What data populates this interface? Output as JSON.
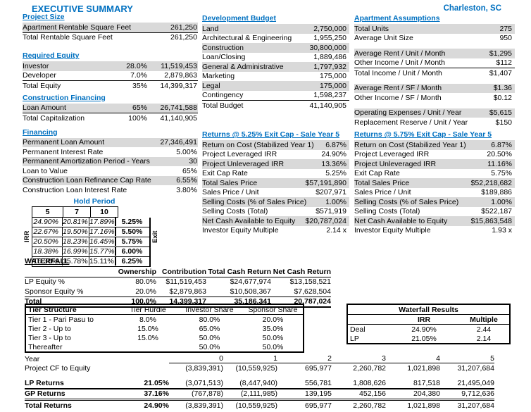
{
  "colors": {
    "accent_blue": "#0070C0",
    "row_band": "#D9D9D9"
  },
  "header": {
    "title": "EXECUTIVE SUMMARY",
    "location": "Charleston, SC"
  },
  "left": {
    "project_size": {
      "title": "Project Size",
      "rows": [
        {
          "label": "Apartment Rentable Square Feet",
          "value": "261,250",
          "cls": "shade bb"
        },
        {
          "label": "Total Rentable Square Feet",
          "value": "261,250",
          "cls": ""
        }
      ]
    },
    "required_equity": {
      "title": "Required Equity",
      "rows": [
        {
          "label": "Investor",
          "pct": "28.0%",
          "value": "11,519,453",
          "cls": "shade"
        },
        {
          "label": "Developer",
          "pct": "7.0%",
          "value": "2,879,863",
          "cls": "bb"
        },
        {
          "label": "Total Equity",
          "pct": "35%",
          "value": "14,399,317",
          "cls": ""
        }
      ]
    },
    "construction_financing": {
      "title": "Construction Financing",
      "rows": [
        {
          "label": "Loan Amount",
          "pct": "65%",
          "value": "26,741,588",
          "cls": "shade bb"
        },
        {
          "label": "Total Capitalization",
          "pct": "100%",
          "value": "41,140,905",
          "cls": ""
        }
      ]
    },
    "financing": {
      "title": "Financing",
      "rows": [
        {
          "label": "Permanent Loan Amount",
          "value": "27,346,491",
          "cls": "shade"
        },
        {
          "label": "Permanent Interest Rate",
          "value": "5.00%",
          "cls": ""
        },
        {
          "label": "Permanent Amortization Period - Years",
          "value": "30",
          "cls": "shade"
        },
        {
          "label": "Loan to Value",
          "value": "65%",
          "cls": ""
        },
        {
          "label": "Construction Loan Refinance Cap Rate",
          "value": "6.55%",
          "cls": "shade"
        },
        {
          "label": "Construction Loan Interest Rate",
          "value": "3.80%",
          "cls": ""
        }
      ]
    },
    "hold_period": {
      "title": "Hold Period",
      "row_axis": "IRR",
      "col_axis": "Exit",
      "col_headers": [
        "5",
        "7",
        "10"
      ],
      "rows": [
        {
          "c5": "24.90%",
          "c7": "20.81%",
          "c10": "17.89%",
          "exit": "5.25%",
          "cls": "it"
        },
        {
          "c5": "22.67%",
          "c7": "19.50%",
          "c10": "17.16%",
          "exit": "5.50%",
          "cls": "it"
        },
        {
          "c5": "20.50%",
          "c7": "18.23%",
          "c10": "16.45%",
          "exit": "5.75%",
          "cls": "it"
        },
        {
          "c5": "18.38%",
          "c7": "16.99%",
          "c10": "15.77%",
          "exit": "6.00%",
          "cls": "it"
        },
        {
          "c5": "16.30%",
          "c7": "15.78%",
          "c10": "15.11%",
          "exit": "6.25%",
          "cls": ""
        }
      ]
    }
  },
  "middle": {
    "development_budget": {
      "title": "Development Budget",
      "rows": [
        {
          "label": "Land",
          "value": "2,750,000",
          "cls": "shade"
        },
        {
          "label": "Architectural & Engineering",
          "value": "1,955,250",
          "cls": ""
        },
        {
          "label": "Construction",
          "value": "30,800,000",
          "cls": "shade"
        },
        {
          "label": "Loan/Closing",
          "value": "1,889,486",
          "cls": ""
        },
        {
          "label": "General & Administrative",
          "value": "1,797,932",
          "cls": "shade"
        },
        {
          "label": "Marketing",
          "value": "175,000",
          "cls": ""
        },
        {
          "label": "Legal",
          "value": "175,000",
          "cls": "shade"
        },
        {
          "label": "Contingency",
          "value": "1,598,237",
          "cls": "bb"
        },
        {
          "label": "Total Budget",
          "value": "41,140,905",
          "cls": ""
        }
      ]
    },
    "returns_525": {
      "title": "Returns @ 5.25% Exit Cap - Sale Year 5",
      "rows": [
        {
          "label": "Return on Cost (Stabilized Year 1)",
          "value": "6.87%",
          "cls": "shade"
        },
        {
          "label": "Project Leveraged IRR",
          "value": "24.90%",
          "cls": ""
        },
        {
          "label": "Project Unleveraged IRR",
          "value": "13.36%",
          "cls": "shade"
        },
        {
          "label": "Exit Cap Rate",
          "value": "5.25%",
          "cls": ""
        },
        {
          "label": "Total Sales Price",
          "value": "$57,191,890",
          "cls": "shade"
        },
        {
          "label": "Sales Price / Unit",
          "value": "$207,971",
          "cls": ""
        },
        {
          "label": "Selling Costs (% of Sales Price)",
          "value": "1.00%",
          "cls": "shade"
        },
        {
          "label": "Selling Costs (Total)",
          "value": "$571,919",
          "cls": ""
        },
        {
          "label": "Net Cash Available to Equity",
          "value": "$20,787,024",
          "cls": "shade"
        },
        {
          "label": "Investor Equity Multiple",
          "value": "2.14 x",
          "cls": ""
        }
      ]
    }
  },
  "right": {
    "apartment_assumptions": {
      "title": "Apartment Assumptions",
      "g1": [
        {
          "label": "Total Units",
          "value": "275",
          "cls": "shade"
        },
        {
          "label": "Average Unit Size",
          "value": "950",
          "cls": ""
        }
      ],
      "g2": [
        {
          "label": "Average Rent  /  Unit  /  Month",
          "value": "$1,295",
          "cls": "shade"
        },
        {
          "label": "Other Income  /  Unit  /  Month",
          "value": "$112",
          "cls": "bb"
        },
        {
          "label": "Total Income  /  Unit  /  Month",
          "value": "$1,407",
          "cls": ""
        }
      ],
      "g3": [
        {
          "label": "Average Rent  /  SF  /  Month",
          "value": "$1.36",
          "cls": "shade"
        },
        {
          "label": "Other Income  /  SF  /  Month",
          "value": "$0.12",
          "cls": ""
        }
      ],
      "g4": [
        {
          "label": "Operating Expenses  /  Unit  /  Year",
          "value": "$5,615",
          "cls": "shade"
        },
        {
          "label": "Replacement Reserve  /  Unit  /  Year",
          "value": "$150",
          "cls": ""
        }
      ]
    },
    "returns_575": {
      "title": "Returns @ 5.75% Exit Cap - Sale Year 5",
      "rows": [
        {
          "label": "Return on Cost (Stabilized Year 1)",
          "value": "6.87%",
          "cls": "shade"
        },
        {
          "label": "Project Leveraged IRR",
          "value": "20.50%",
          "cls": ""
        },
        {
          "label": "Project Unleveraged IRR",
          "value": "11.16%",
          "cls": "shade"
        },
        {
          "label": "Exit Cap Rate",
          "value": "5.75%",
          "cls": ""
        },
        {
          "label": "Total Sales Price",
          "value": "$52,218,682",
          "cls": "shade"
        },
        {
          "label": "Sales Price / Unit",
          "value": "$189,886",
          "cls": ""
        },
        {
          "label": "Selling Costs (% of Sales Price)",
          "value": "1.00%",
          "cls": "shade"
        },
        {
          "label": "Selling Costs (Total)",
          "value": "$522,187",
          "cls": ""
        },
        {
          "label": "Net Cash Available to Equity",
          "value": "$15,863,548",
          "cls": "shade"
        },
        {
          "label": "Investor Equity Multiple",
          "value": "1.93 x",
          "cls": ""
        }
      ]
    }
  },
  "waterfall": {
    "title": "WATERFALL",
    "headers": [
      "",
      "Ownership",
      "Contribution",
      "Total Cash Return",
      "Net Cash Return"
    ],
    "rows": [
      {
        "label": "LP Equity %",
        "own": "80.0%",
        "contrib": "$11,519,453",
        "tcr": "$24,677,974",
        "ncr": "$13,158,521",
        "cls": ""
      },
      {
        "label": "Sponsor Equity %",
        "own": "20.0%",
        "contrib": "$2,879,863",
        "tcr": "$10,508,367",
        "ncr": "$7,628,504",
        "cls": "bb"
      },
      {
        "label": "Total",
        "own": "100.0%",
        "contrib": "14,399,317",
        "tcr": "35,186,341",
        "ncr": "20,787,024",
        "cls": "tot bb2"
      }
    ]
  },
  "tier_structure": {
    "headers": [
      "Tier Structure",
      "Tier Hurdle",
      "Investor Share",
      "Sponsor Share"
    ],
    "rows": [
      {
        "label": "Tier 1 - Pari Pasu to",
        "hurdle": "8.0%",
        "inv": "80.0%",
        "spon": "20.0%",
        "cls": ""
      },
      {
        "label": "Tier 2 - Up to",
        "hurdle": "15.0%",
        "inv": "65.0%",
        "spon": "35.0%",
        "cls": ""
      },
      {
        "label": "Tier 3 - Up to",
        "hurdle": "15.0%",
        "inv": "50.0%",
        "spon": "50.0%",
        "cls": ""
      },
      {
        "label": "Thereafter",
        "hurdle": "",
        "inv": "50.0%",
        "spon": "50.0%",
        "cls": ""
      }
    ]
  },
  "waterfall_results": {
    "title": "Waterfall Results",
    "headers": [
      "IRR",
      "Multiple"
    ],
    "rows": [
      {
        "label": "Deal",
        "irr": "24.90%",
        "mult": "2.44",
        "cls": ""
      },
      {
        "label": "LP",
        "irr": "21.05%",
        "mult": "2.14",
        "cls": ""
      }
    ]
  },
  "cashflow": {
    "rows": [
      {
        "label": "Year",
        "pct": "",
        "v0": "0",
        "v1": "1",
        "v2": "2",
        "v3": "3",
        "v4": "4",
        "v5": "5",
        "cls": "yr"
      },
      {
        "label": "Project CF to Equity",
        "pct": "",
        "v0": "(3,839,391)",
        "v1": "(10,559,925)",
        "v2": "695,977",
        "v3": "2,260,782",
        "v4": "1,021,898",
        "v5": "31,207,684",
        "cls": ""
      },
      {
        "label": "LP Returns",
        "pct": "21.05%",
        "v0": "(3,071,513)",
        "v1": "(8,447,940)",
        "v2": "556,781",
        "v3": "1,808,626",
        "v4": "817,518",
        "v5": "21,495,049",
        "cls": "lp"
      },
      {
        "label": "GP Returns",
        "pct": "37.16%",
        "v0": "(767,878)",
        "v1": "(2,111,985)",
        "v2": "139,195",
        "v3": "452,156",
        "v4": "204,380",
        "v5": "9,712,636",
        "cls": "gp"
      },
      {
        "label": "Total Returns",
        "pct": "24.90%",
        "v0": "(3,839,391)",
        "v1": "(10,559,925)",
        "v2": "695,977",
        "v3": "2,260,782",
        "v4": "1,021,898",
        "v5": "31,207,684",
        "cls": "tot"
      }
    ]
  }
}
